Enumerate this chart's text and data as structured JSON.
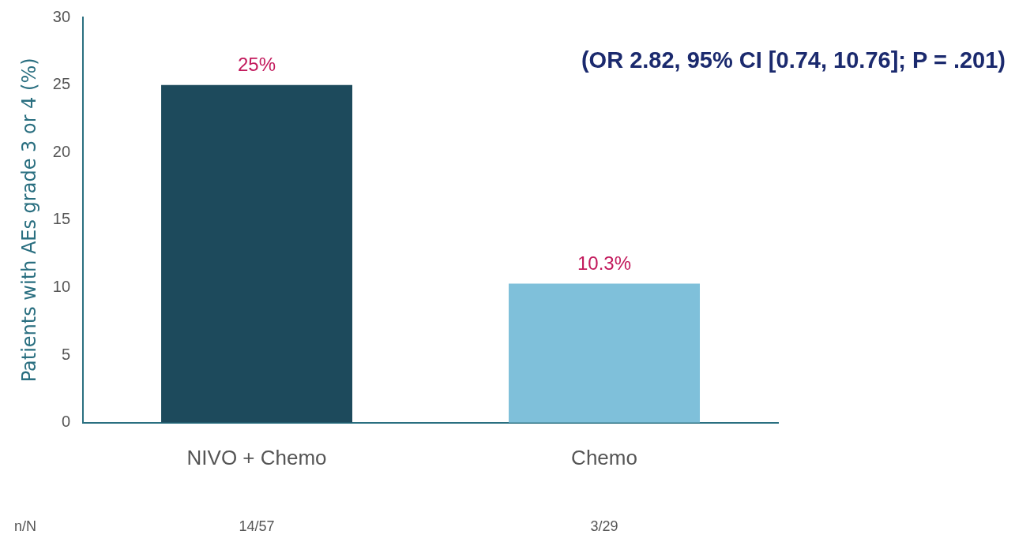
{
  "chart_data": {
    "type": "bar",
    "ylabel": "Patients with AEs grade 3 or 4 (%)",
    "categories": [
      "NIVO + Chemo",
      "Chemo"
    ],
    "values": [
      25,
      10.3
    ],
    "colors": [
      "#1d4a5c",
      "#7fc0da"
    ],
    "value_labels": [
      "25%",
      "10.3%"
    ],
    "ylim": [
      0,
      30
    ],
    "yticks": [
      0,
      5,
      10,
      15,
      20,
      25,
      30
    ],
    "grid": false,
    "legend": false,
    "annotations": [
      "(OR 2.82, 95% CI [0.74, 10.76]; P = .201)",
      "n/N",
      "14/57",
      "3/29"
    ]
  }
}
